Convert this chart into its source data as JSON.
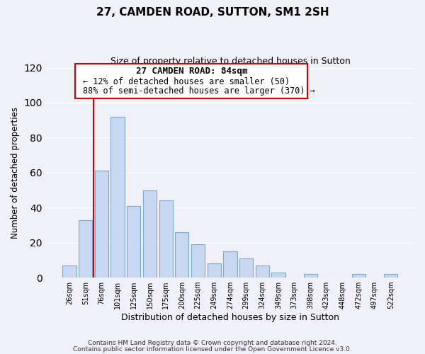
{
  "title": "27, CAMDEN ROAD, SUTTON, SM1 2SH",
  "subtitle": "Size of property relative to detached houses in Sutton",
  "xlabel": "Distribution of detached houses by size in Sutton",
  "ylabel": "Number of detached properties",
  "bar_labels": [
    "26sqm",
    "51sqm",
    "76sqm",
    "101sqm",
    "125sqm",
    "150sqm",
    "175sqm",
    "200sqm",
    "225sqm",
    "249sqm",
    "274sqm",
    "299sqm",
    "324sqm",
    "349sqm",
    "373sqm",
    "398sqm",
    "423sqm",
    "448sqm",
    "472sqm",
    "497sqm",
    "522sqm"
  ],
  "bar_values": [
    7,
    33,
    61,
    92,
    41,
    50,
    44,
    26,
    19,
    8,
    15,
    11,
    7,
    3,
    0,
    2,
    0,
    0,
    2,
    0,
    2
  ],
  "bar_color": "#c8d8f0",
  "bar_edge_color": "#7aaad0",
  "vline_color": "#cc0000",
  "ylim": [
    0,
    120
  ],
  "yticks": [
    0,
    20,
    40,
    60,
    80,
    100,
    120
  ],
  "annotation_title": "27 CAMDEN ROAD: 84sqm",
  "annotation_line1": "← 12% of detached houses are smaller (50)",
  "annotation_line2": "88% of semi-detached houses are larger (370) →",
  "annotation_box_color": "#ffffff",
  "annotation_box_edge": "#cc0000",
  "footer1": "Contains HM Land Registry data © Crown copyright and database right 2024.",
  "footer2": "Contains public sector information licensed under the Open Government Licence v3.0.",
  "background_color": "#f0f0f8",
  "grid_color": "#ffffff"
}
